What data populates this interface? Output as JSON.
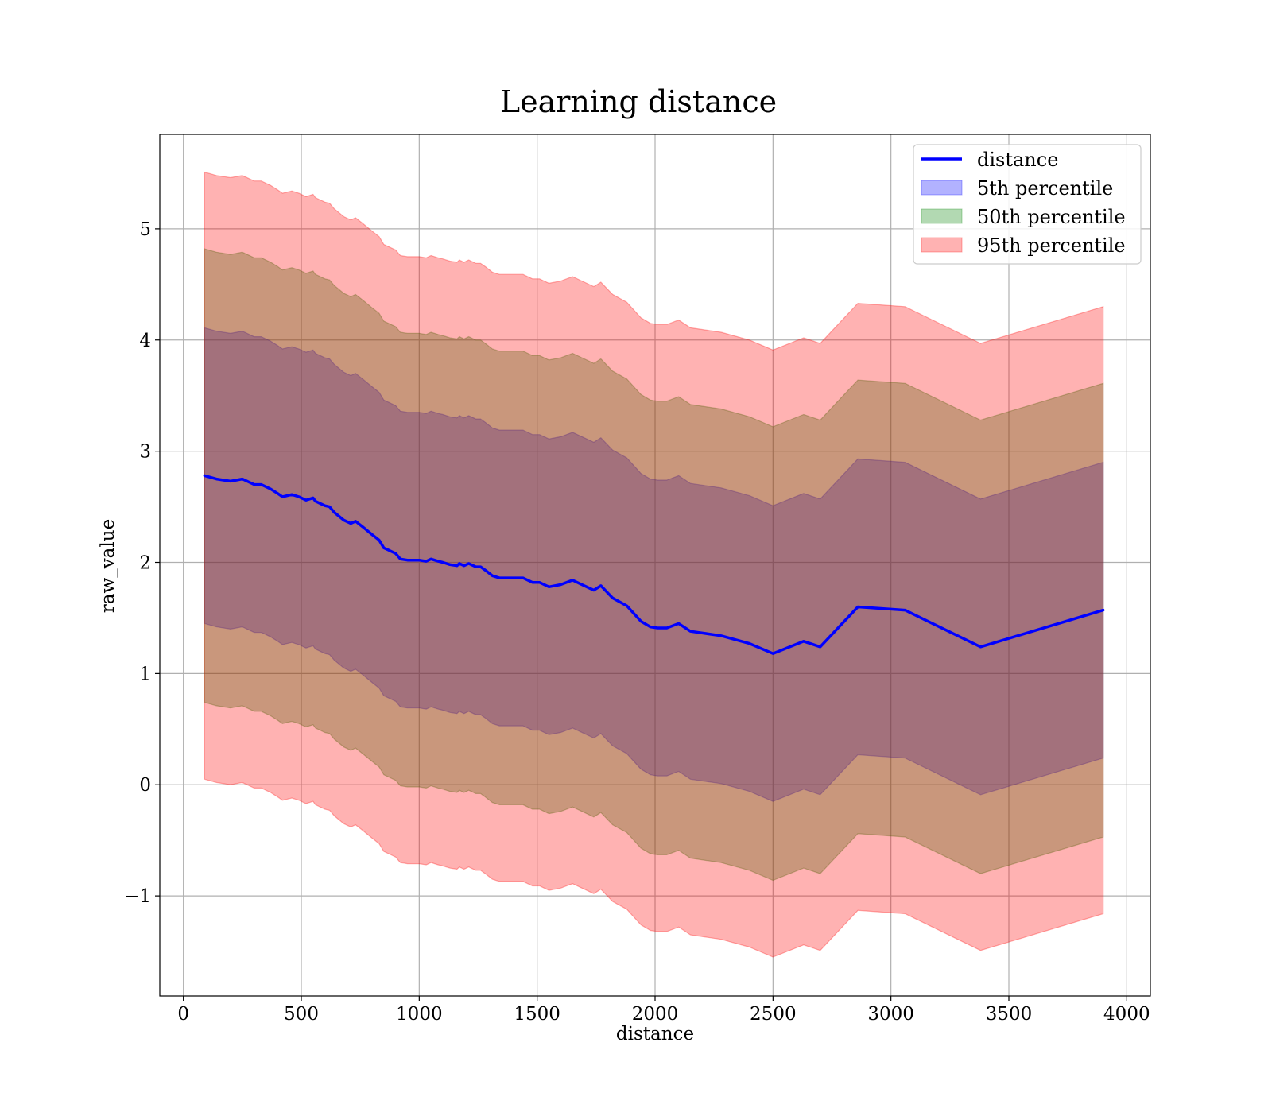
{
  "chart_data": {
    "type": "area",
    "title": "Learning distance",
    "xlabel": "distance",
    "ylabel": "raw_value",
    "xlim": [
      -100,
      4100
    ],
    "ylim": [
      -1.9,
      5.85
    ],
    "xticks": [
      0,
      500,
      1000,
      1500,
      2000,
      2500,
      3000,
      3500,
      4000
    ],
    "xtick_labels": [
      "0",
      "500",
      "1000",
      "1500",
      "2000",
      "2500",
      "3000",
      "3500",
      "4000"
    ],
    "yticks": [
      -1,
      0,
      1,
      2,
      3,
      4,
      5
    ],
    "ytick_labels": [
      "−1",
      "0",
      "1",
      "2",
      "3",
      "4",
      "5"
    ],
    "grid": true,
    "legend_position": "top-right",
    "x": [
      90,
      140,
      200,
      250,
      300,
      330,
      370,
      400,
      420,
      460,
      490,
      520,
      550,
      560,
      600,
      620,
      640,
      680,
      710,
      730,
      760,
      800,
      830,
      850,
      870,
      900,
      920,
      950,
      1000,
      1030,
      1050,
      1080,
      1100,
      1130,
      1160,
      1170,
      1190,
      1210,
      1240,
      1260,
      1280,
      1310,
      1340,
      1400,
      1440,
      1480,
      1510,
      1550,
      1600,
      1650,
      1700,
      1740,
      1770,
      1820,
      1880,
      1940,
      1980,
      2010,
      2050,
      2100,
      2150,
      2280,
      2400,
      2500,
      2630,
      2700,
      2860,
      3060,
      3380,
      3900
    ],
    "series": [
      {
        "name": "distance",
        "values": [
          2.78,
          2.75,
          2.73,
          2.75,
          2.7,
          2.7,
          2.66,
          2.62,
          2.59,
          2.61,
          2.59,
          2.56,
          2.58,
          2.55,
          2.51,
          2.5,
          2.45,
          2.38,
          2.35,
          2.37,
          2.32,
          2.25,
          2.2,
          2.13,
          2.11,
          2.08,
          2.03,
          2.02,
          2.02,
          2.01,
          2.03,
          2.01,
          2.0,
          1.98,
          1.97,
          1.99,
          1.97,
          1.99,
          1.96,
          1.96,
          1.93,
          1.88,
          1.86,
          1.86,
          1.86,
          1.82,
          1.82,
          1.78,
          1.8,
          1.84,
          1.79,
          1.75,
          1.79,
          1.68,
          1.61,
          1.47,
          1.42,
          1.41,
          1.41,
          1.45,
          1.38,
          1.34,
          1.27,
          1.18,
          1.29,
          1.24,
          1.6,
          1.57,
          1.24,
          1.57
        ]
      }
    ],
    "bands": [
      {
        "name": "5th percentile",
        "half_width": 1.33
      },
      {
        "name": "50th percentile",
        "half_width": 2.04
      },
      {
        "name": "95th percentile",
        "half_width": 2.73
      }
    ],
    "colors": {
      "line": "#0000ff",
      "band_5th": "#0000ff",
      "band_50th": "#008000",
      "band_95th": "#ff0000",
      "grid": "#b0b0b0"
    }
  }
}
